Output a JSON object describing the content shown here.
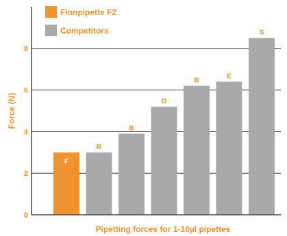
{
  "chart_data": {
    "type": "bar",
    "categories": [
      "F",
      "R",
      "B",
      "G",
      "B",
      "E",
      "S"
    ],
    "values": [
      3.0,
      3.0,
      3.9,
      5.2,
      6.2,
      6.4,
      8.5
    ],
    "group": [
      "Finnpipette F2",
      "Competitors",
      "Competitors",
      "Competitors",
      "Competitors",
      "Competitors",
      "Competitors"
    ],
    "series": [
      {
        "name": "Finnpipette F2",
        "color": "#F0922E"
      },
      {
        "name": "Competitors",
        "color": "#A9A9A9"
      }
    ],
    "title": "",
    "xlabel": "Pipetting forces for 1-10µl pipettes",
    "ylabel": "Force (N)",
    "ylim": [
      0,
      10
    ],
    "yticks": [
      0,
      2,
      4,
      6,
      8
    ],
    "grid": true,
    "legend_position": "top-left",
    "axis_text_color": "#F0922E"
  }
}
